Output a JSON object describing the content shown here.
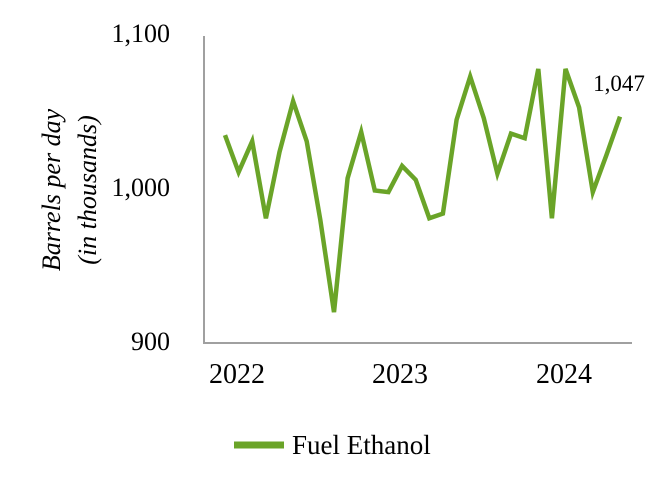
{
  "chart_data": {
    "type": "line",
    "title": "",
    "ylabel_line1": "Barrels per day",
    "ylabel_line2": "(in thousands)",
    "xlabel": "",
    "ylim": [
      900,
      1100
    ],
    "grid": false,
    "legend_position": "bottom",
    "axis_color": "#a0a0a0",
    "end_label": "1,047",
    "y_tick_labels": [
      "1,100",
      "1,000",
      "900"
    ],
    "x_tick_labels": [
      "2022",
      "2023",
      "2024"
    ],
    "x": [
      "Jan 2022",
      "Feb 2022",
      "Mar 2022",
      "Apr 2022",
      "May 2022",
      "Jun 2022",
      "Jul 2022",
      "Aug 2022",
      "Sep 2022",
      "Oct 2022",
      "Nov 2022",
      "Dec 2022",
      "Jan 2023",
      "Feb 2023",
      "Mar 2023",
      "Apr 2023",
      "May 2023",
      "Jun 2023",
      "Jul 2023",
      "Aug 2023",
      "Sep 2023",
      "Oct 2023",
      "Nov 2023",
      "Dec 2023",
      "Jan 2024",
      "Feb 2024",
      "Mar 2024",
      "Apr 2024",
      "May 2024",
      "Jun 2024"
    ],
    "series": [
      {
        "name": "Fuel Ethanol",
        "color": "#6AA428",
        "values": [
          1035,
          1011,
          1031,
          981,
          1024,
          1057,
          1031,
          980,
          920,
          1007,
          1037,
          999,
          998,
          1015,
          1006,
          981,
          984,
          1045,
          1073,
          1046,
          1010,
          1036,
          1033,
          1078,
          981,
          1078,
          1053,
          998,
          1022,
          1047
        ]
      }
    ]
  }
}
